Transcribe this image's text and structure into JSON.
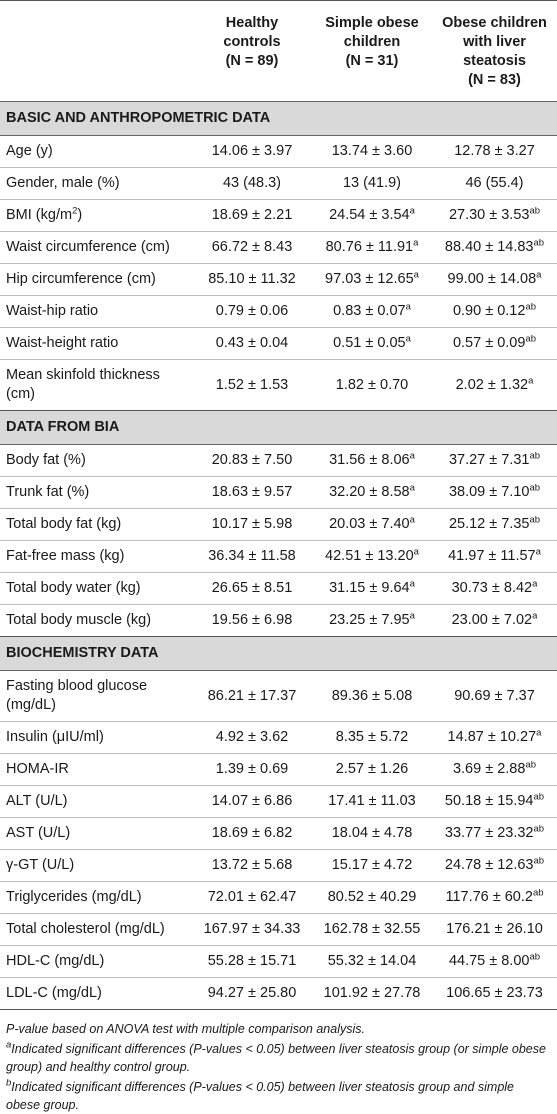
{
  "header": {
    "col1": [
      "Healthy",
      "controls",
      "(N = 89)"
    ],
    "col2": [
      "Simple obese",
      "children",
      "(N = 31)"
    ],
    "col3": [
      "Obese children",
      "with liver",
      "steatosis",
      "(N = 83)"
    ]
  },
  "sections": [
    {
      "title": "BASIC AND ANTHROPOMETRIC DATA",
      "rows": [
        {
          "label": "Age (y)",
          "v1": "14.06 ± 3.97",
          "v2": "13.74 ± 3.60",
          "s2": "",
          "v3": "12.78 ± 3.27",
          "s3": ""
        },
        {
          "label": "Gender, male (%)",
          "v1": "43 (48.3)",
          "v2": "13 (41.9)",
          "s2": "",
          "v3": "46 (55.4)",
          "s3": ""
        },
        {
          "label": "BMI (kg/m",
          "labelSup": "2",
          "labelEnd": ")",
          "v1": "18.69 ± 2.21",
          "v2": "24.54 ± 3.54",
          "s2": "a",
          "v3": "27.30 ± 3.53",
          "s3": "ab"
        },
        {
          "label": "Waist circumference (cm)",
          "v1": "66.72 ± 8.43",
          "v2": "80.76 ± 11.91",
          "s2": "a",
          "v3": "88.40 ± 14.83",
          "s3": "ab"
        },
        {
          "label": "Hip circumference (cm)",
          "v1": "85.10 ± 11.32",
          "v2": "97.03 ± 12.65",
          "s2": "a",
          "v3": "99.00 ± 14.08",
          "s3": "a"
        },
        {
          "label": "Waist-hip ratio",
          "v1": "0.79 ± 0.06",
          "v2": "0.83 ± 0.07",
          "s2": "a",
          "v3": "0.90 ± 0.12",
          "s3": "ab"
        },
        {
          "label": "Waist-height ratio",
          "v1": "0.43 ± 0.04",
          "v2": "0.51 ± 0.05",
          "s2": "a",
          "v3": "0.57 ± 0.09",
          "s3": "ab"
        },
        {
          "label": "Mean skinfold thickness (cm)",
          "v1": "1.52 ± 1.53",
          "v2": "1.82 ± 0.70",
          "s2": "",
          "v3": "2.02 ± 1.32",
          "s3": "a"
        }
      ]
    },
    {
      "title": "DATA FROM BIA",
      "rows": [
        {
          "label": "Body fat (%)",
          "v1": "20.83 ± 7.50",
          "v2": "31.56 ± 8.06",
          "s2": "a",
          "v3": "37.27 ± 7.31",
          "s3": "ab"
        },
        {
          "label": "Trunk fat (%)",
          "v1": "18.63 ± 9.57",
          "v2": "32.20 ± 8.58",
          "s2": "a",
          "v3": "38.09 ± 7.10",
          "s3": "ab"
        },
        {
          "label": "Total body fat (kg)",
          "v1": "10.17 ± 5.98",
          "v2": "20.03 ± 7.40",
          "s2": "a",
          "v3": "25.12 ± 7.35",
          "s3": "ab"
        },
        {
          "label": "Fat-free mass (kg)",
          "v1": "36.34 ± 11.58",
          "v2": "42.51 ± 13.20",
          "s2": "a",
          "v3": "41.97 ± 11.57",
          "s3": "a"
        },
        {
          "label": "Total body water (kg)",
          "v1": "26.65 ± 8.51",
          "v2": "31.15 ± 9.64",
          "s2": "a",
          "v3": "30.73 ± 8.42",
          "s3": "a"
        },
        {
          "label": "Total body muscle (kg)",
          "v1": "19.56 ± 6.98",
          "v2": "23.25 ± 7.95",
          "s2": "a",
          "v3": "23.00 ± 7.02",
          "s3": "a"
        }
      ]
    },
    {
      "title": "BIOCHEMISTRY DATA",
      "rows": [
        {
          "label": "Fasting blood glucose (mg/dL)",
          "v1": "86.21 ± 17.37",
          "v2": "89.36 ± 5.08",
          "s2": "",
          "v3": "90.69 ± 7.37",
          "s3": ""
        },
        {
          "label": "Insulin (μIU/ml)",
          "v1": "4.92 ± 3.62",
          "v2": "8.35 ± 5.72",
          "s2": "",
          "v3": "14.87 ± 10.27",
          "s3": "a"
        },
        {
          "label": "HOMA-IR",
          "v1": "1.39 ± 0.69",
          "v2": "2.57 ± 1.26",
          "s2": "",
          "v3": "3.69 ± 2.88",
          "s3": "ab"
        },
        {
          "label": "ALT (U/L)",
          "v1": "14.07 ± 6.86",
          "v2": "17.41 ± 11.03",
          "s2": "",
          "v3": "50.18 ± 15.94",
          "s3": "ab"
        },
        {
          "label": "AST (U/L)",
          "v1": "18.69 ± 6.82",
          "v2": "18.04 ± 4.78",
          "s2": "",
          "v3": "33.77 ± 23.32",
          "s3": "ab"
        },
        {
          "label": "γ-GT (U/L)",
          "v1": "13.72 ± 5.68",
          "v2": "15.17 ± 4.72",
          "s2": "",
          "v3": "24.78 ± 12.63",
          "s3": "ab"
        },
        {
          "label": "Triglycerides (mg/dL)",
          "v1": "72.01 ± 62.47",
          "v2": "80.52 ± 40.29",
          "s2": "",
          "v3": "117.76 ± 60.2",
          "s3": "ab"
        },
        {
          "label": "Total cholesterol (mg/dL)",
          "v1": "167.97 ± 34.33",
          "v2": "162.78 ± 32.55",
          "s2": "",
          "v3": "176.21 ± 26.10",
          "s3": ""
        },
        {
          "label": "HDL-C (mg/dL)",
          "v1": "55.28 ± 15.71",
          "v2": "55.32 ± 14.04",
          "s2": "",
          "v3": "44.75 ± 8.00",
          "s3": "ab"
        },
        {
          "label": "LDL-C (mg/dL)",
          "v1": "94.27 ± 25.80",
          "v2": "101.92 ± 27.78",
          "s2": "",
          "v3": "106.65 ± 23.73",
          "s3": ""
        }
      ]
    }
  ],
  "notes": {
    "pvalue": "P-value based on ANOVA test with multiple comparison analysis.",
    "a_mark": "a",
    "a_text": "Indicated significant differences (P-values < 0.05) between liver steatosis group (or simple obese group) and healthy control group.",
    "b_mark": "b",
    "b_text": "Indicated significant differences (P-values < 0.05) between liver steatosis group and simple obese group."
  }
}
